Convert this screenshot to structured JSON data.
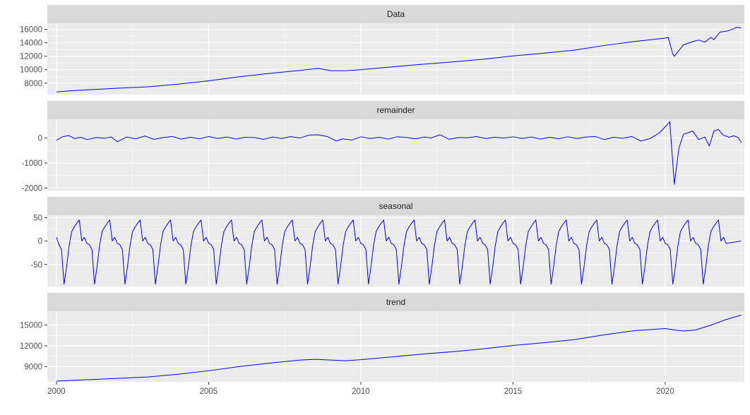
{
  "chart_data": {
    "type": "line",
    "xlim": [
      1999.7,
      2022.6
    ],
    "x_ticks": [
      2000,
      2005,
      2010,
      2015,
      2020
    ],
    "x_tick_labels": [
      "2000",
      "2005",
      "2010",
      "2015",
      "2020"
    ],
    "line_color": "#0000ff",
    "panels": [
      {
        "title": "Data",
        "ylim": [
          6300,
          16900
        ],
        "y_ticks": [
          8000,
          10000,
          12000,
          14000,
          16000
        ],
        "y_tick_labels": [
          "8000",
          "10000",
          "12000",
          "14000",
          "16000"
        ],
        "points": [
          [
            2000.0,
            6700
          ],
          [
            2000.5,
            6880
          ],
          [
            2001.0,
            7000
          ],
          [
            2002.0,
            7250
          ],
          [
            2003.0,
            7450
          ],
          [
            2004.0,
            7850
          ],
          [
            2005.0,
            8350
          ],
          [
            2006.0,
            8950
          ],
          [
            2007.0,
            9450
          ],
          [
            2008.0,
            9900
          ],
          [
            2008.6,
            10200
          ],
          [
            2009.0,
            9850
          ],
          [
            2009.5,
            9850
          ],
          [
            2010.0,
            10000
          ],
          [
            2011.0,
            10400
          ],
          [
            2012.0,
            10800
          ],
          [
            2013.0,
            11150
          ],
          [
            2014.0,
            11550
          ],
          [
            2015.0,
            12050
          ],
          [
            2016.0,
            12450
          ],
          [
            2017.0,
            12900
          ],
          [
            2018.0,
            13600
          ],
          [
            2019.0,
            14200
          ],
          [
            2020.0,
            14700
          ],
          [
            2020.1,
            14800
          ],
          [
            2020.25,
            12300
          ],
          [
            2020.3,
            12000
          ],
          [
            2020.6,
            13700
          ],
          [
            2021.0,
            14300
          ],
          [
            2021.1,
            14400
          ],
          [
            2021.3,
            14100
          ],
          [
            2021.5,
            14800
          ],
          [
            2021.6,
            14450
          ],
          [
            2021.8,
            15600
          ],
          [
            2022.0,
            15700
          ],
          [
            2022.2,
            16000
          ],
          [
            2022.35,
            16300
          ],
          [
            2022.5,
            16200
          ]
        ]
      },
      {
        "title": "remainder",
        "ylim": [
          -2100,
          750
        ],
        "y_ticks": [
          -2000,
          -1000,
          0
        ],
        "y_tick_labels": [
          "-2000",
          "-1000",
          "0"
        ],
        "points": [
          [
            2000.0,
            -80
          ],
          [
            2000.2,
            50
          ],
          [
            2000.4,
            100
          ],
          [
            2000.6,
            -20
          ],
          [
            2000.8,
            30
          ],
          [
            2001.0,
            -60
          ],
          [
            2001.3,
            20
          ],
          [
            2001.6,
            -10
          ],
          [
            2001.8,
            40
          ],
          [
            2002.0,
            -150
          ],
          [
            2002.3,
            40
          ],
          [
            2002.6,
            -30
          ],
          [
            2002.9,
            80
          ],
          [
            2003.2,
            -50
          ],
          [
            2003.5,
            20
          ],
          [
            2003.8,
            60
          ],
          [
            2004.1,
            -40
          ],
          [
            2004.4,
            30
          ],
          [
            2004.7,
            -30
          ],
          [
            2005.0,
            60
          ],
          [
            2005.3,
            -20
          ],
          [
            2005.6,
            40
          ],
          [
            2005.9,
            -40
          ],
          [
            2006.2,
            30
          ],
          [
            2006.5,
            20
          ],
          [
            2006.8,
            -50
          ],
          [
            2007.1,
            40
          ],
          [
            2007.4,
            -20
          ],
          [
            2007.7,
            60
          ],
          [
            2008.0,
            0
          ],
          [
            2008.3,
            120
          ],
          [
            2008.6,
            130
          ],
          [
            2008.9,
            60
          ],
          [
            2009.2,
            -120
          ],
          [
            2009.4,
            -30
          ],
          [
            2009.7,
            -80
          ],
          [
            2010.0,
            50
          ],
          [
            2010.3,
            -20
          ],
          [
            2010.6,
            30
          ],
          [
            2010.9,
            -40
          ],
          [
            2011.2,
            50
          ],
          [
            2011.5,
            20
          ],
          [
            2011.8,
            -30
          ],
          [
            2012.1,
            40
          ],
          [
            2012.3,
            0
          ],
          [
            2012.6,
            130
          ],
          [
            2012.9,
            -50
          ],
          [
            2013.2,
            20
          ],
          [
            2013.5,
            10
          ],
          [
            2013.8,
            60
          ],
          [
            2014.1,
            -20
          ],
          [
            2014.4,
            30
          ],
          [
            2014.7,
            0
          ],
          [
            2015.0,
            50
          ],
          [
            2015.3,
            -20
          ],
          [
            2015.6,
            40
          ],
          [
            2015.9,
            -40
          ],
          [
            2016.2,
            30
          ],
          [
            2016.5,
            -30
          ],
          [
            2016.8,
            50
          ],
          [
            2017.1,
            -20
          ],
          [
            2017.4,
            40
          ],
          [
            2017.7,
            60
          ],
          [
            2018.0,
            -60
          ],
          [
            2018.3,
            30
          ],
          [
            2018.6,
            -10
          ],
          [
            2018.9,
            60
          ],
          [
            2019.2,
            -120
          ],
          [
            2019.5,
            -20
          ],
          [
            2019.8,
            200
          ],
          [
            2020.0,
            450
          ],
          [
            2020.15,
            650
          ],
          [
            2020.3,
            -1850
          ],
          [
            2020.45,
            -400
          ],
          [
            2020.6,
            150
          ],
          [
            2020.9,
            280
          ],
          [
            2021.1,
            -60
          ],
          [
            2021.3,
            40
          ],
          [
            2021.45,
            -320
          ],
          [
            2021.6,
            280
          ],
          [
            2021.75,
            340
          ],
          [
            2021.9,
            120
          ],
          [
            2022.1,
            30
          ],
          [
            2022.25,
            90
          ],
          [
            2022.4,
            20
          ],
          [
            2022.5,
            -180
          ]
        ]
      },
      {
        "title": "seasonal",
        "ylim": [
          -97,
          55
        ],
        "y_ticks": [
          -50,
          0,
          50
        ],
        "y_tick_labels": [
          "-50",
          "0",
          "50"
        ],
        "cycle_start": 2000.0,
        "cycle_count": 22,
        "cycle_shape": [
          8,
          -8,
          -18,
          -92,
          -55,
          -10,
          20,
          30,
          38,
          45,
          0,
          8,
          -5
        ]
      },
      {
        "title": "trend",
        "ylim": [
          6800,
          17000
        ],
        "y_ticks": [
          9000,
          12000,
          15000
        ],
        "y_tick_labels": [
          "9000",
          "12000",
          "15000"
        ],
        "points": [
          [
            2000.0,
            6900
          ],
          [
            2001.0,
            7100
          ],
          [
            2002.0,
            7300
          ],
          [
            2003.0,
            7500
          ],
          [
            2004.0,
            7900
          ],
          [
            2005.0,
            8400
          ],
          [
            2006.0,
            9000
          ],
          [
            2007.0,
            9500
          ],
          [
            2008.0,
            9950
          ],
          [
            2008.5,
            10050
          ],
          [
            2009.0,
            9950
          ],
          [
            2009.5,
            9850
          ],
          [
            2010.0,
            10000
          ],
          [
            2011.0,
            10400
          ],
          [
            2012.0,
            10800
          ],
          [
            2013.0,
            11150
          ],
          [
            2014.0,
            11550
          ],
          [
            2015.0,
            12050
          ],
          [
            2016.0,
            12450
          ],
          [
            2017.0,
            12900
          ],
          [
            2018.0,
            13600
          ],
          [
            2019.0,
            14200
          ],
          [
            2020.0,
            14500
          ],
          [
            2020.3,
            14300
          ],
          [
            2020.6,
            14150
          ],
          [
            2021.0,
            14300
          ],
          [
            2021.5,
            15000
          ],
          [
            2022.0,
            15800
          ],
          [
            2022.5,
            16450
          ]
        ]
      }
    ]
  }
}
